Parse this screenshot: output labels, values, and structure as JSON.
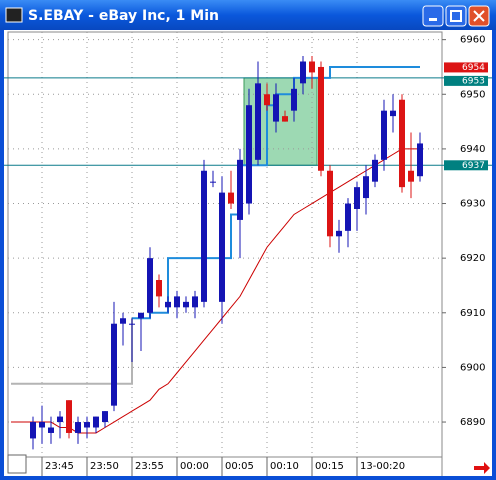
{
  "window": {
    "title": "S.EBAY - eBay Inc, 1 Min"
  },
  "chart_data": {
    "type": "candlestick",
    "categories": [
      null,
      "23:45",
      null,
      null,
      null,
      null,
      "23:50",
      null,
      null,
      null,
      null,
      "23:55",
      null,
      null,
      null,
      null,
      "00:00",
      null,
      null,
      null,
      null,
      "00:05",
      null,
      null,
      null,
      null,
      "00:10",
      null,
      null,
      null,
      null,
      "00:15",
      null,
      null,
      null,
      null,
      "13-00:20",
      null,
      null,
      null,
      null,
      null,
      null,
      null
    ],
    "open": [
      6887,
      6889,
      6888,
      6890,
      6894,
      6888,
      6889,
      6889,
      6890,
      6893,
      6908,
      6908,
      6909,
      6910,
      6916,
      6911,
      6911,
      6911,
      6911,
      6912,
      6934,
      6912,
      6932,
      6927,
      6930,
      6938,
      6950,
      6945,
      6946,
      6947,
      6952,
      6956,
      6955,
      6936,
      6924,
      6925,
      6929,
      6931,
      6934,
      6938,
      6946,
      6949,
      6936,
      6935
    ],
    "high": [
      6891,
      6893,
      6891,
      6892,
      6894,
      6891,
      6891,
      6891,
      6892,
      6912,
      6910,
      6909,
      6910,
      6922,
      6917,
      6913,
      6914,
      6913,
      6914,
      6938,
      6936,
      6935,
      6936,
      6940,
      6951,
      6956,
      6952,
      6952,
      6947,
      6953,
      6957,
      6957,
      6956,
      6937,
      6927,
      6931,
      6934,
      6937,
      6939,
      6949,
      6950,
      6950,
      6943,
      6943
    ],
    "low": [
      6885,
      6886,
      6886,
      6887,
      6887,
      6886,
      6887,
      6888,
      6889,
      6892,
      6904,
      6901,
      6903,
      6909,
      6911,
      6910,
      6909,
      6910,
      6909,
      6911,
      6933,
      6908,
      6929,
      6920,
      6928,
      6937,
      6947,
      6943,
      6945,
      6945,
      6950,
      6951,
      6935,
      6922,
      6921,
      6922,
      6925,
      6928,
      6933,
      6936,
      6943,
      6932,
      6931,
      6934
    ],
    "close": [
      6890,
      6890,
      6889,
      6891,
      6888,
      6890,
      6890,
      6891,
      6892,
      6908,
      6909,
      6908,
      6910,
      6920,
      6913,
      6912,
      6913,
      6912,
      6913,
      6936,
      6934,
      6932,
      6930,
      6938,
      6948,
      6952,
      6948,
      6950,
      6945,
      6951,
      6956,
      6954,
      6936,
      6924,
      6925,
      6930,
      6933,
      6935,
      6938,
      6947,
      6947,
      6933,
      6934,
      6941
    ],
    "up_color": "#1414b4",
    "down_color": "#dc1414",
    "series": [
      {
        "color": "#cc0000",
        "values": [
          6890,
          6890,
          6890,
          6889,
          6889,
          6888,
          6888,
          6888,
          6889,
          6890,
          6891,
          6892,
          6893,
          6894,
          6896,
          6897,
          6899,
          6901,
          6903,
          6905,
          6907,
          6909,
          6911,
          6913,
          6916,
          6919,
          6922,
          6924,
          6926,
          6928,
          6929,
          6930,
          6931,
          6932,
          6933,
          6934,
          6935,
          6936,
          6937,
          6938,
          6939,
          6940,
          6940,
          6940
        ]
      },
      {
        "color": "#b4b4b4",
        "step": true,
        "values": [
          6897,
          6897,
          6897,
          6897,
          6897,
          6897,
          6897,
          6897,
          6897,
          6897,
          6897,
          6909,
          null,
          null,
          null,
          null,
          null,
          null,
          null,
          null,
          null,
          null,
          null,
          null,
          null,
          null,
          null,
          null,
          null,
          null,
          null,
          null,
          null,
          null,
          null,
          null,
          null,
          null,
          null,
          null,
          null,
          null,
          null,
          null
        ]
      },
      {
        "color": "#1e8cdc",
        "step": true,
        "values": [
          null,
          null,
          null,
          null,
          null,
          null,
          null,
          null,
          null,
          null,
          null,
          6909,
          6909,
          6910,
          6910,
          6920,
          6920,
          6920,
          6920,
          6920,
          6920,
          6920,
          6928,
          6937,
          6937,
          6937,
          6948,
          6950,
          6950,
          6953,
          6953,
          6953,
          6953,
          6955,
          6955,
          6955,
          6955,
          6955,
          6955,
          6955,
          6955,
          6955,
          6955,
          6955
        ]
      }
    ],
    "hlines": [
      6953,
      6937
    ],
    "price_labels": [
      {
        "value": 6954,
        "color": "#dc1414"
      },
      {
        "value": 6953,
        "color": "#008080"
      },
      {
        "value": 6937,
        "color": "#008080"
      }
    ],
    "ylim": [
      6883.6,
      6961.4
    ],
    "yticks": [
      6890,
      6900,
      6910,
      6920,
      6930,
      6940,
      6950,
      6960
    ],
    "grid": true
  }
}
